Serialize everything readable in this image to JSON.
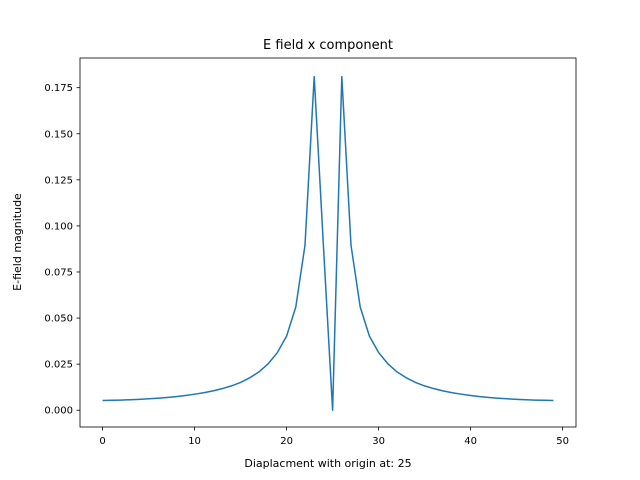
{
  "chart_data": {
    "type": "line",
    "title": "E field x component",
    "xlabel": "Diaplacment with origin at: 25",
    "ylabel": "E-field magnitude",
    "xlim": [
      -2.45,
      51.45
    ],
    "ylim": [
      -0.0091,
      0.1911
    ],
    "xticks": [
      0,
      10,
      20,
      30,
      40,
      50
    ],
    "xtick_labels": [
      "0",
      "10",
      "20",
      "30",
      "40",
      "50"
    ],
    "yticks": [
      0,
      0.025,
      0.05,
      0.075,
      0.1,
      0.125,
      0.15,
      0.175
    ],
    "ytick_labels": [
      "0.000",
      "0.025",
      "0.050",
      "0.075",
      "0.100",
      "0.125",
      "0.150",
      "0.175"
    ],
    "grid": false,
    "series": [
      {
        "color": "#1f77b4",
        "x": [
          0,
          1,
          2,
          3,
          4,
          5,
          6,
          7,
          8,
          9,
          10,
          11,
          12,
          13,
          14,
          15,
          16,
          17,
          18,
          19,
          20,
          21,
          22,
          23,
          24,
          25,
          26,
          27,
          28,
          29,
          30,
          31,
          32,
          33,
          34,
          35,
          36,
          37,
          38,
          39,
          40,
          41,
          42,
          43,
          44,
          45,
          46,
          47,
          48,
          49
        ],
        "values": [
          0.0053,
          0.0054,
          0.0055,
          0.0057,
          0.0059,
          0.0062,
          0.0065,
          0.0069,
          0.0074,
          0.008,
          0.0087,
          0.0095,
          0.0105,
          0.0117,
          0.0132,
          0.0151,
          0.0176,
          0.0208,
          0.0252,
          0.0313,
          0.0402,
          0.056,
          0.0895,
          0.181,
          0.0895,
          0.0,
          0.181,
          0.0895,
          0.056,
          0.0402,
          0.0313,
          0.0252,
          0.0208,
          0.0176,
          0.0151,
          0.0132,
          0.0117,
          0.0105,
          0.0095,
          0.0087,
          0.008,
          0.0074,
          0.0069,
          0.0065,
          0.0062,
          0.0059,
          0.0057,
          0.0055,
          0.0054,
          0.0053
        ]
      }
    ]
  }
}
